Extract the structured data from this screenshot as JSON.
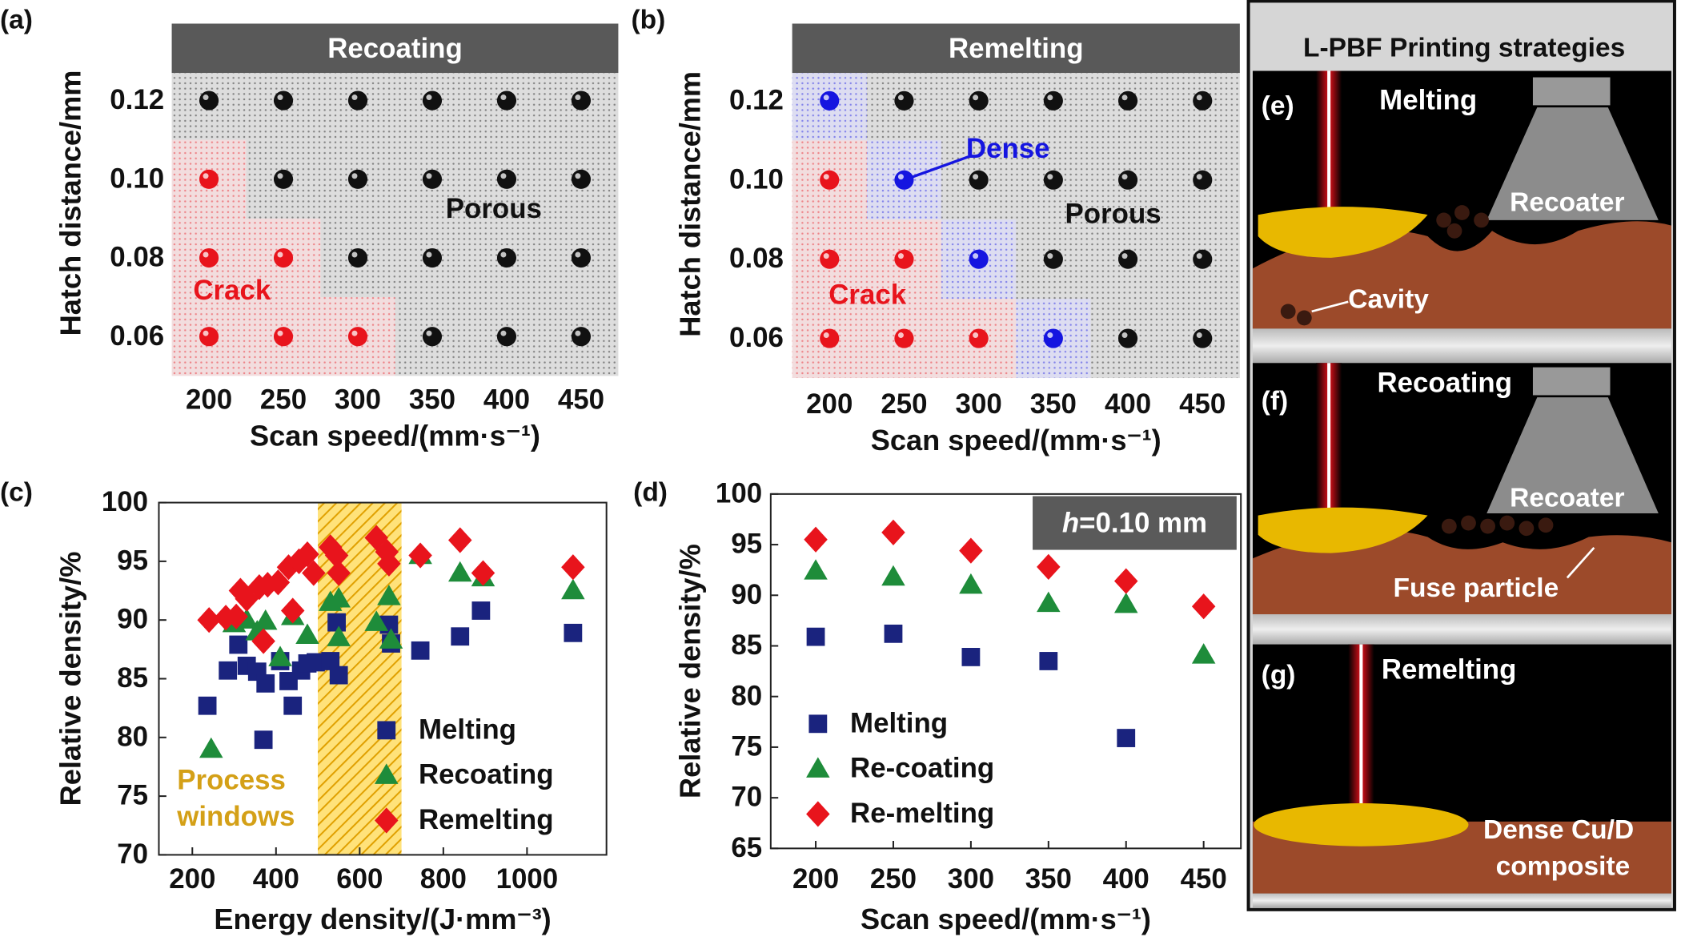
{
  "chart_data": [
    {
      "type": "grid",
      "panel": "(a)",
      "title": "Recoating",
      "x_label": "Scan speed/(mm·s⁻¹)",
      "y_label": "Hatch distance/mm",
      "xlim": [
        175,
        475
      ],
      "ylim": [
        0.05,
        0.127
      ],
      "xticks": [
        200,
        250,
        300,
        350,
        400,
        450
      ],
      "yticks": [
        0.06,
        0.08,
        {
          "value": 0.1,
          "label": "0.10"
        },
        0.12
      ],
      "series": [
        {
          "name": "Crack",
          "color": "#e8141c",
          "x": [
            200,
            200,
            250,
            200,
            250,
            300
          ],
          "y": [
            0.1,
            0.08,
            0.08,
            0.06,
            0.06,
            0.06
          ]
        },
        {
          "name": "Porous",
          "color": "#111111",
          "x": [
            200,
            250,
            300,
            350,
            400,
            450,
            250,
            300,
            350,
            400,
            450,
            300,
            350,
            400,
            450,
            350,
            400,
            450
          ],
          "y": [
            0.12,
            0.12,
            0.12,
            0.12,
            0.12,
            0.12,
            0.1,
            0.1,
            0.1,
            0.1,
            0.1,
            0.08,
            0.08,
            0.08,
            0.08,
            0.06,
            0.06,
            0.06
          ]
        }
      ]
    },
    {
      "type": "grid",
      "panel": "(b)",
      "title": "Remelting",
      "x_label": "Scan speed/(mm·s⁻¹)",
      "y_label": "Hatch distance/mm",
      "xlim": [
        175,
        475
      ],
      "ylim": [
        0.05,
        0.127
      ],
      "xticks": [
        200,
        250,
        300,
        350,
        400,
        450
      ],
      "yticks": [
        0.06,
        0.08,
        {
          "value": 0.1,
          "label": "0.10"
        },
        0.12
      ],
      "series": [
        {
          "name": "Crack",
          "color": "#e8141c",
          "x": [
            200,
            200,
            250,
            200,
            250,
            300
          ],
          "y": [
            0.1,
            0.08,
            0.08,
            0.06,
            0.06,
            0.06
          ]
        },
        {
          "name": "Dense",
          "color": "#1515e0",
          "x": [
            200,
            250,
            300,
            350
          ],
          "y": [
            0.12,
            0.1,
            0.08,
            0.06
          ]
        },
        {
          "name": "Porous",
          "color": "#111111",
          "x": [
            250,
            300,
            350,
            400,
            450,
            300,
            350,
            400,
            450,
            350,
            400,
            450,
            400,
            450
          ],
          "y": [
            0.12,
            0.12,
            0.12,
            0.12,
            0.12,
            0.1,
            0.1,
            0.1,
            0.1,
            0.08,
            0.08,
            0.08,
            0.06,
            0.06
          ]
        }
      ]
    },
    {
      "type": "scatter",
      "panel": "(c)",
      "x_label": "Energy density/(J·mm⁻³)",
      "y_label": "Relative density/%",
      "xlim": [
        120,
        1190
      ],
      "ylim": [
        70,
        100
      ],
      "xticks": [
        200,
        400,
        600,
        800,
        1000
      ],
      "yticks": [
        70,
        75,
        80,
        85,
        90,
        95,
        100
      ],
      "legend": "lower right",
      "highlight_range": [
        500,
        700
      ],
      "highlight_color": "#d4a017",
      "highlight_label": [
        "Process",
        "windows"
      ],
      "series": [
        {
          "name": "Melting",
          "color": "#1a237e",
          "marker": "square",
          "x": [
            236,
            285,
            310,
            330,
            355,
            375,
            370,
            410,
            430,
            440,
            460,
            475,
            495,
            530,
            545,
            550,
            670,
            675,
            745,
            840,
            890,
            1110
          ],
          "y": [
            82.7,
            85.7,
            87.9,
            86.1,
            85.6,
            84.6,
            79.8,
            86.5,
            84.8,
            82.7,
            85.7,
            86.3,
            86.4,
            86.5,
            89.8,
            85.3,
            89.6,
            88,
            87.4,
            88.6,
            90.8,
            88.9
          ]
        },
        {
          "name": "Recoating",
          "color": "#1e8c3a",
          "marker": "triangle",
          "x": [
            245,
            300,
            330,
            355,
            375,
            410,
            440,
            475,
            530,
            550,
            550,
            640,
            670,
            675,
            745,
            840,
            895,
            1110
          ],
          "y": [
            79,
            89.7,
            90,
            89,
            89.9,
            86.8,
            90.3,
            88.7,
            91.5,
            91.8,
            88.5,
            89.8,
            92,
            88.3,
            95.5,
            94,
            93.6,
            92.5
          ]
        },
        {
          "name": "Remelting",
          "color": "#e8141c",
          "marker": "diamond",
          "x": [
            240,
            280,
            305,
            315,
            330,
            360,
            370,
            380,
            405,
            430,
            440,
            455,
            475,
            490,
            530,
            545,
            550,
            640,
            665,
            670,
            745,
            840,
            895,
            1110
          ],
          "y": [
            90,
            90.2,
            90.3,
            92.5,
            91.8,
            92.8,
            88.2,
            93,
            93.2,
            94.5,
            90.8,
            95,
            95.6,
            94,
            96.2,
            95.5,
            94,
            97,
            95.8,
            94.8,
            95.5,
            96.8,
            94,
            94.5
          ]
        }
      ]
    },
    {
      "type": "scatter",
      "panel": "(d)",
      "x_label": "Scan speed/(mm·s⁻¹)",
      "y_label": "Relative density/%",
      "xlim": [
        171,
        474
      ],
      "ylim": [
        65,
        100
      ],
      "xticks": [
        200,
        250,
        300,
        350,
        400,
        450
      ],
      "yticks": [
        65,
        70,
        75,
        80,
        85,
        90,
        95,
        100
      ],
      "legend": "lower left",
      "annotation": {
        "variable": "h",
        "text": "=0.10 mm"
      },
      "series": [
        {
          "name": "Melting",
          "color": "#1a237e",
          "marker": "square",
          "x": [
            200,
            250,
            300,
            350,
            400
          ],
          "y": [
            85.9,
            86.2,
            83.9,
            83.5,
            75.9
          ]
        },
        {
          "name": "Re-coating",
          "color": "#1e8c3a",
          "marker": "triangle",
          "x": [
            200,
            250,
            300,
            350,
            400,
            450
          ],
          "y": [
            92.4,
            91.8,
            91,
            89.2,
            89.1,
            84.1
          ]
        },
        {
          "name": "Re-melting",
          "color": "#e8141c",
          "marker": "diamond",
          "x": [
            200,
            250,
            300,
            350,
            400,
            450
          ],
          "y": [
            95.5,
            96.2,
            94.4,
            92.8,
            91.4,
            88.9
          ]
        }
      ]
    }
  ],
  "schematic": {
    "title": "L-PBF Printing strategies",
    "panels": [
      {
        "label": "(e)",
        "texts": [
          "Melting",
          "Recoater",
          "Cavity"
        ]
      },
      {
        "label": "(f)",
        "texts": [
          "Recoating",
          "Recoater",
          "Fuse particle"
        ]
      },
      {
        "label": "(g)",
        "texts": [
          "Remelting",
          "Dense Cu/D",
          "composite"
        ]
      }
    ]
  }
}
